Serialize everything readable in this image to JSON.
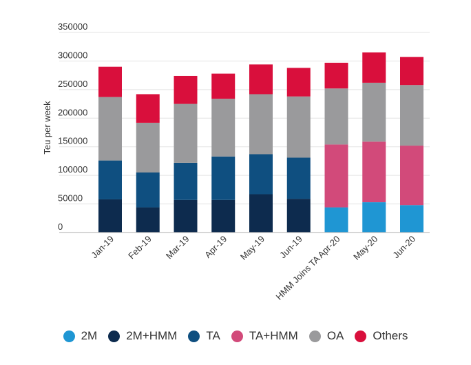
{
  "chart_data": {
    "type": "bar",
    "stacked": true,
    "title": "",
    "xlabel": "",
    "ylabel": "Teu per week",
    "ylim": [
      0,
      350000
    ],
    "yticks": [
      0,
      50000,
      100000,
      150000,
      200000,
      250000,
      300000,
      350000
    ],
    "ytick_labels": [
      "0",
      "50000",
      "100000",
      "150000",
      "200000",
      "250000",
      "300000",
      "350000"
    ],
    "grid": true,
    "legend_position": "bottom",
    "categories": [
      "Jan-19",
      "Feb-19",
      "Mar-19",
      "Apr-19",
      "May-19",
      "Jun-19",
      "HMM Joins TA Apr-20",
      "May-20",
      "Jun-20"
    ],
    "series": [
      {
        "name": "2M",
        "color": "#1f96d3",
        "values": [
          0,
          0,
          0,
          0,
          0,
          0,
          44000,
          53000,
          48000
        ]
      },
      {
        "name": "2M+HMM",
        "color": "#0d2b4e",
        "values": [
          58000,
          44000,
          57000,
          57000,
          67000,
          59000,
          0,
          0,
          0
        ]
      },
      {
        "name": "TA",
        "color": "#0f4f80",
        "values": [
          68000,
          61000,
          65000,
          76000,
          70000,
          72000,
          0,
          0,
          0
        ]
      },
      {
        "name": "TA+HMM",
        "color": "#d24a7a",
        "values": [
          0,
          0,
          0,
          0,
          0,
          0,
          110000,
          106000,
          104000
        ]
      },
      {
        "name": "OA",
        "color": "#9a9a9c",
        "values": [
          111000,
          87000,
          103000,
          101000,
          105000,
          107000,
          98000,
          103000,
          106000
        ]
      },
      {
        "name": "Others",
        "color": "#d90f3c",
        "values": [
          53000,
          50000,
          49000,
          44000,
          52000,
          50000,
          45000,
          53000,
          49000
        ]
      }
    ]
  }
}
